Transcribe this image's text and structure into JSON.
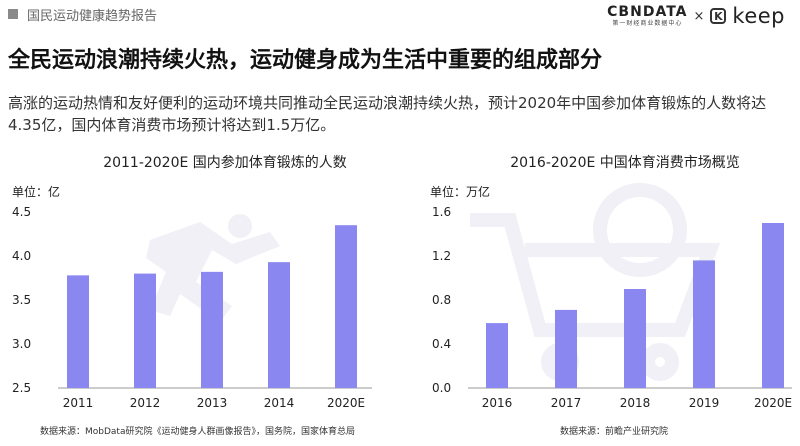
{
  "header": {
    "section_label": "国民运动健康趋势报告"
  },
  "brand": {
    "cbn_main": "CBNDATA",
    "cbn_sub": "第一财经商业数据中心",
    "times": "×",
    "keep_icon": "K",
    "keep_text": "keep"
  },
  "title": "全民运动浪潮持续火热，运动健身成为生活中重要的组成部分",
  "description": "高涨的运动热情和友好便利的运动环境共同推动全民运动浪潮持续火热，预计2020年中国参加体育锻炼的人数将达4.35亿，国内体育消费市场预计将达到1.5万亿。",
  "colors": {
    "bar": "#8b87f0",
    "watermark": "#f0f0f6"
  },
  "chart_data": [
    {
      "type": "bar",
      "title": "2011-2020E 国内参加体育锻炼的人数",
      "unit": "单位：亿",
      "categories": [
        "2011",
        "2012",
        "2013",
        "2014",
        "2020E"
      ],
      "values": [
        3.78,
        3.8,
        3.82,
        3.93,
        4.35
      ],
      "yticks": [
        "4.5",
        "4.0",
        "3.5",
        "3.0",
        "2.5"
      ],
      "ylim": [
        2.5,
        4.5
      ],
      "source": "数据来源：MobData研究院《运动健身人群画像报告》，国务院，国家体育总局"
    },
    {
      "type": "bar",
      "title": "2016-2020E 中国体育消费市场概览",
      "unit": "单位：万亿",
      "categories": [
        "2016",
        "2017",
        "2018",
        "2019",
        "2020E"
      ],
      "values": [
        0.59,
        0.71,
        0.9,
        1.16,
        1.5
      ],
      "yticks": [
        "1.6",
        "1.2",
        "0.8",
        "0.4",
        "0.0"
      ],
      "ylim": [
        0,
        1.6
      ],
      "source": "数据来源：前瞻产业研究院"
    }
  ]
}
